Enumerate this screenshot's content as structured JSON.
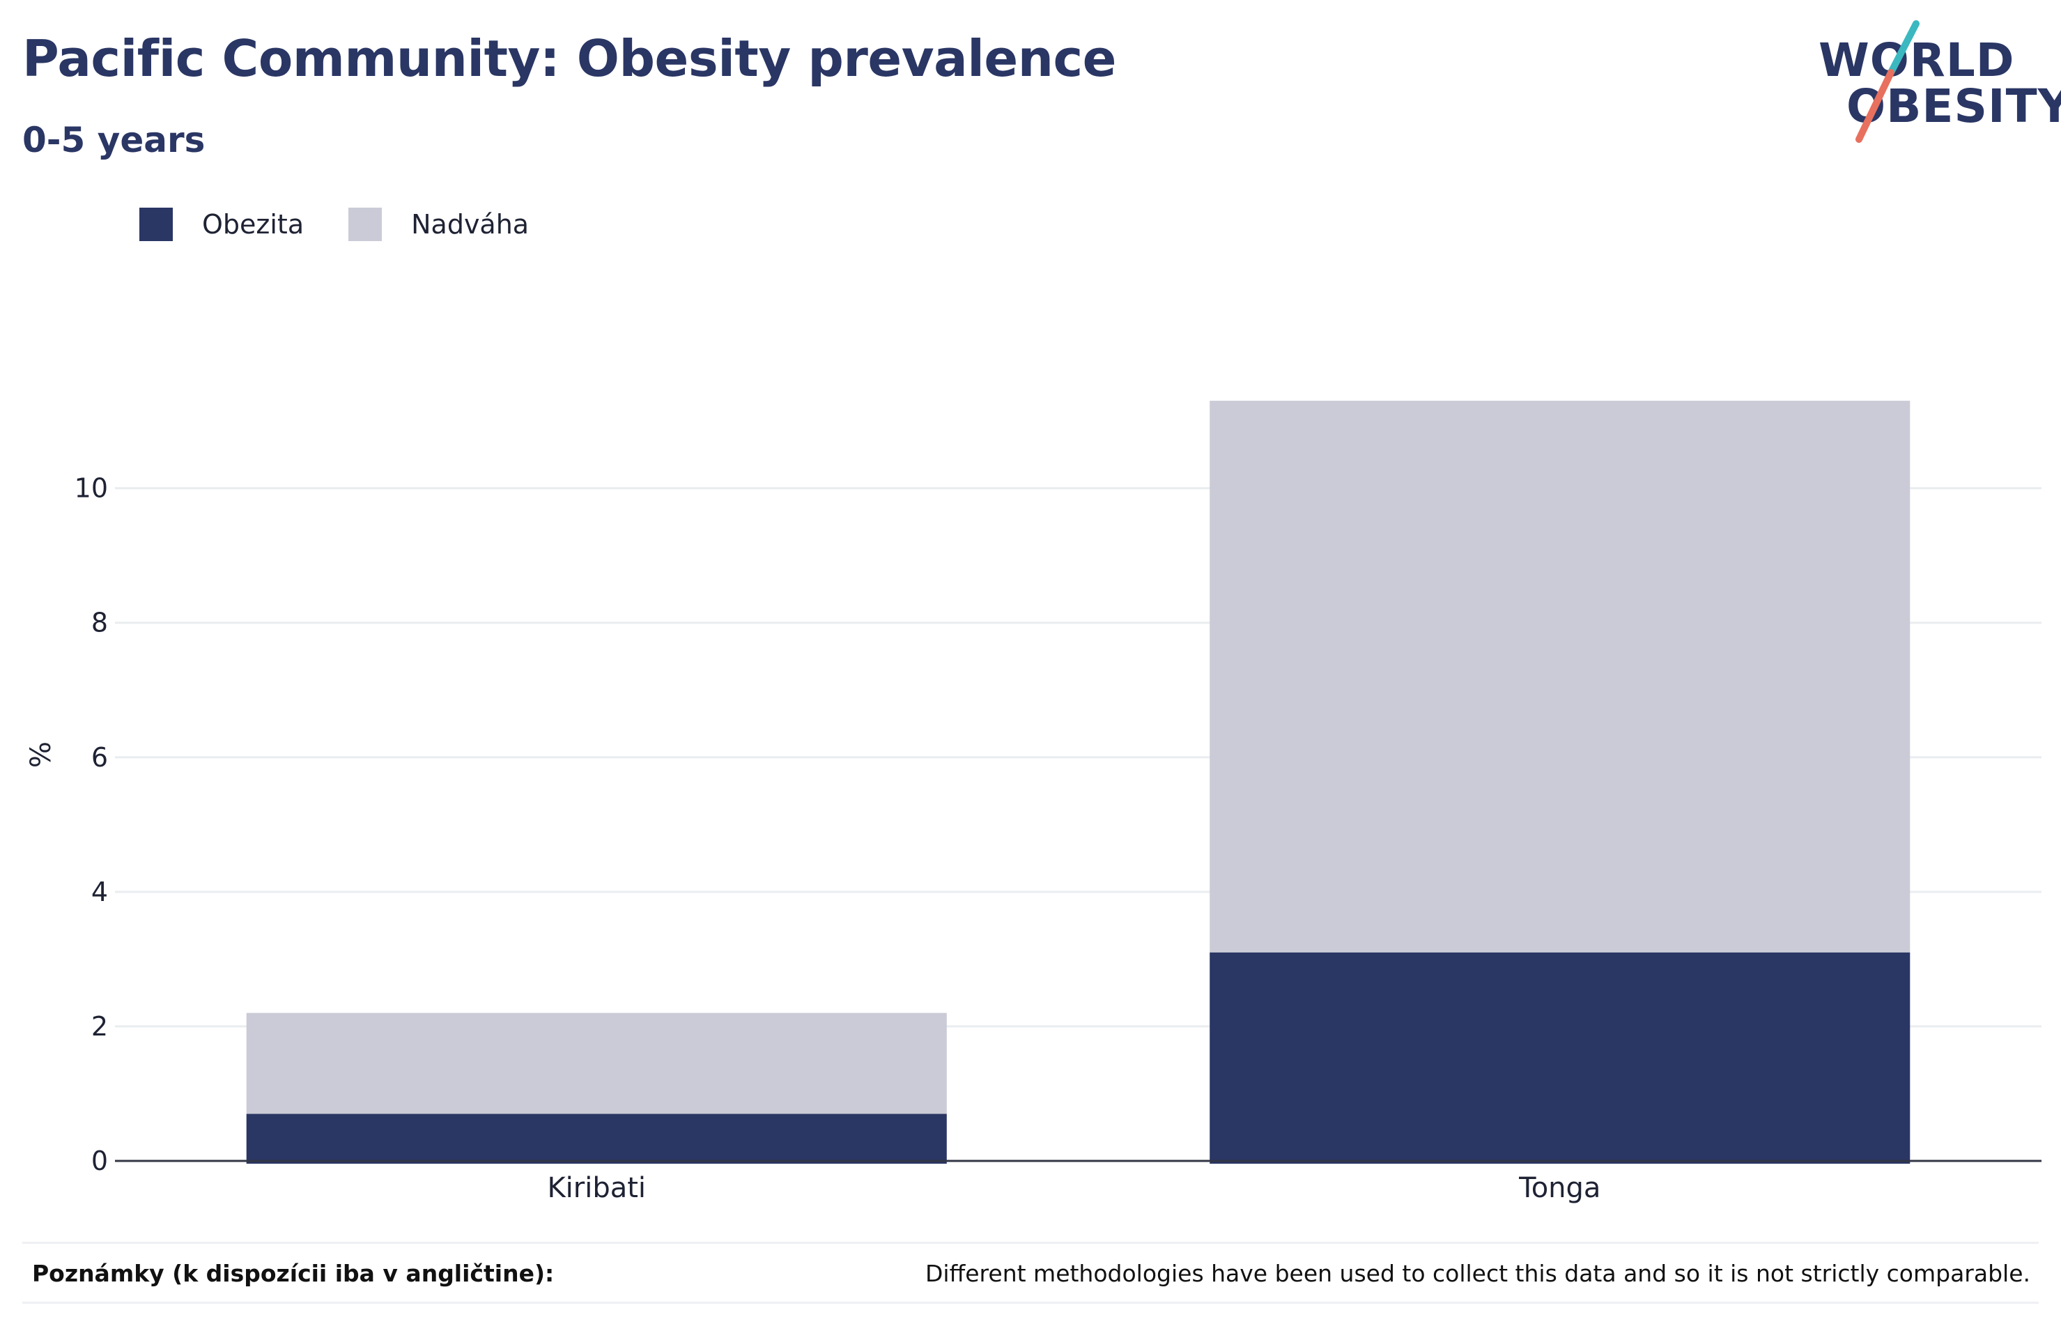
{
  "header": {
    "title": "Pacific Community: Obesity prevalence",
    "subtitle": "0-5 years"
  },
  "logo": {
    "line1": "WORLD",
    "line2": "OBESITY",
    "colors": {
      "text": "#2a3664",
      "slash_top": "#3bb8c0",
      "slash_bottom": "#e8705e"
    }
  },
  "legend": [
    {
      "label": "Obezita",
      "color": "#2a3664"
    },
    {
      "label": "Nadváha",
      "color": "#cacbd6"
    }
  ],
  "chart_data": {
    "type": "bar",
    "stacked": true,
    "categories": [
      "Kiribati",
      "Tonga"
    ],
    "series": [
      {
        "name": "Obezita",
        "values": [
          0.7,
          3.1
        ],
        "color": "#2a3664"
      },
      {
        "name": "Nadváha",
        "values": [
          1.5,
          8.2
        ],
        "color": "#cacbd6"
      }
    ],
    "ylabel": "%",
    "ylim": [
      0,
      12.7
    ],
    "yticks": [
      0,
      2,
      4,
      6,
      8,
      10
    ],
    "grid": true,
    "legend_position": "top-left"
  },
  "notes": {
    "label": "Poznámky (k dispozícii iba v angličtine):",
    "text": "Different methodologies have been used to collect this data and so it is not strictly comparable."
  }
}
